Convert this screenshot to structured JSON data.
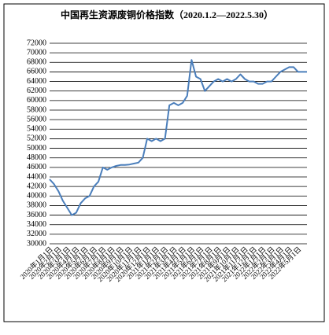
{
  "chart_data": {
    "type": "line",
    "title": "中国再生资源废铜价格指数（2020.1.2—2022.5.30）",
    "categories": [
      "2020年1月1日",
      null,
      "2020年2月1日",
      null,
      "2020年3月1日",
      null,
      "2020年4月1日",
      null,
      "2020年5月1日",
      null,
      "2020年6月1日",
      null,
      "2020年7月1日",
      null,
      "2020年8月1日",
      null,
      "2020年9月1日",
      null,
      "2020年10月1日",
      null,
      "2020年11月1日",
      null,
      "2020年12月1日",
      null,
      "2021年1月1日",
      null,
      "2021年2月1日",
      null,
      "2021年3月1日",
      null,
      "2021年4月1日",
      null,
      "2021年5月1日",
      null,
      "2021年6月1日",
      null,
      "2021年7月1日",
      null,
      "2021年8月1日",
      null,
      "2021年9月1日",
      null,
      "2021年10月1日",
      null,
      "2021年11月1日",
      null,
      "2021年12月1日",
      null,
      "2022年1月1日",
      null,
      "2022年2月1日",
      null,
      "2022年3月1日",
      null,
      "2022年4月1日",
      null,
      "2022年5月1日",
      null,
      null
    ],
    "values": [
      43500,
      42500,
      41000,
      39000,
      37500,
      36000,
      36500,
      38500,
      39500,
      40000,
      42000,
      43000,
      46000,
      45500,
      46000,
      46300,
      46500,
      46500,
      46600,
      46800,
      47000,
      48000,
      52000,
      51500,
      52000,
      51500,
      52000,
      59000,
      59500,
      59000,
      59500,
      61000,
      68500,
      65000,
      64500,
      62000,
      63000,
      64000,
      64500,
      64000,
      64500,
      64000,
      64500,
      65500,
      64500,
      64000,
      64000,
      63500,
      63500,
      64000,
      64000,
      65000,
      66000,
      66500,
      67000,
      67000,
      66000,
      66000,
      66000
    ],
    "color": "#4a7ebb",
    "ylim": [
      30000,
      72000
    ],
    "yticks": [
      30000,
      32000,
      34000,
      36000,
      38000,
      40000,
      42000,
      44000,
      46000,
      48000,
      50000,
      52000,
      54000,
      56000,
      58000,
      60000,
      62000,
      64000,
      66000,
      68000,
      70000,
      72000
    ],
    "grid": true
  }
}
